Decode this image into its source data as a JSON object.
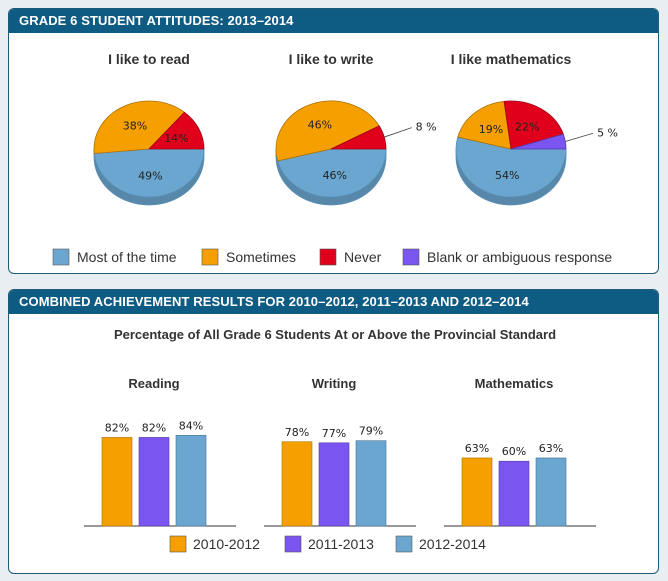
{
  "panel1": {
    "title": "GRADE 6 STUDENT ATTITUDES: 2013–2014"
  },
  "panel2": {
    "title": "COMBINED ACHIEVEMENT RESULTS FOR 2010–2012, 2011–2013 AND 2012–2014"
  },
  "colors": {
    "most": "#6aa6cf",
    "sometimes": "#f5a000",
    "never": "#e0001b",
    "blank": "#7a55f0",
    "y2010": "#f5a000",
    "y2011": "#7a55f0",
    "y2012": "#6aa6cf",
    "header": "#0e5c84"
  },
  "chart_data": [
    {
      "type": "pie",
      "legend": [
        "Most of the time",
        "Sometimes",
        "Never",
        "Blank or ambiguous response"
      ],
      "pies": [
        {
          "title": "I like to read",
          "values": [
            49,
            38,
            14,
            0
          ],
          "labels": [
            "49%",
            "38%",
            "14%",
            ""
          ]
        },
        {
          "title": "I like to write",
          "values": [
            46,
            46,
            8,
            0
          ],
          "labels": [
            "46%",
            "46%",
            "8 %",
            ""
          ]
        },
        {
          "title": "I like mathematics",
          "values": [
            54,
            19,
            22,
            5
          ],
          "labels": [
            "54%",
            "19%",
            "22%",
            "5 %"
          ]
        }
      ]
    },
    {
      "type": "bar",
      "title": "Percentage of All Grade 6 Students At or Above the Provincial Standard",
      "groups": [
        "Reading",
        "Writing",
        "Mathematics"
      ],
      "series": [
        {
          "name": "2010-2012",
          "values": [
            82,
            78,
            63
          ],
          "labels": [
            "82%",
            "78%",
            "63%"
          ]
        },
        {
          "name": "2011-2013",
          "values": [
            82,
            77,
            60
          ],
          "labels": [
            "82%",
            "77%",
            "60%"
          ]
        },
        {
          "name": "2012-2014",
          "values": [
            84,
            79,
            63
          ],
          "labels": [
            "84%",
            "79%",
            "63%"
          ]
        }
      ]
    }
  ]
}
